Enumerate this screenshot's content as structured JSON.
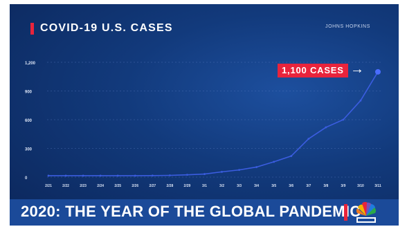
{
  "title": "COVID-19 U.S. CASES",
  "source": "JOHNS HOPKINS",
  "callout": {
    "label": "1,100 CASES",
    "arrow": "→"
  },
  "banner": {
    "text": "2020: THE YEAR OF THE GLOBAL PANDEMIC",
    "logo": "nbc-peacock-logo"
  },
  "colors": {
    "accent": "#e8243c",
    "line": "#3b5de0",
    "background": "#123a7c",
    "banner": "#1b4a99"
  },
  "chart_data": {
    "type": "line",
    "title": "COVID-19 U.S. CASES",
    "xlabel": "",
    "ylabel": "",
    "ylim": [
      0,
      1200
    ],
    "yticks": [
      0,
      300,
      600,
      900,
      1200
    ],
    "ytick_labels": [
      "0",
      "300",
      "600",
      "900",
      "1,200"
    ],
    "categories": [
      "2/21",
      "2/22",
      "2/23",
      "2/24",
      "2/25",
      "2/26",
      "2/27",
      "2/28",
      "2/29",
      "3/1",
      "3/2",
      "3/3",
      "3/4",
      "3/5",
      "3/6",
      "3/7",
      "3/8",
      "3/9",
      "3/10",
      "3/11"
    ],
    "values": [
      15,
      15,
      15,
      15,
      15,
      15,
      16,
      18,
      24,
      32,
      55,
      75,
      105,
      160,
      220,
      400,
      520,
      600,
      800,
      1100
    ],
    "grid": true,
    "legend": "none"
  }
}
